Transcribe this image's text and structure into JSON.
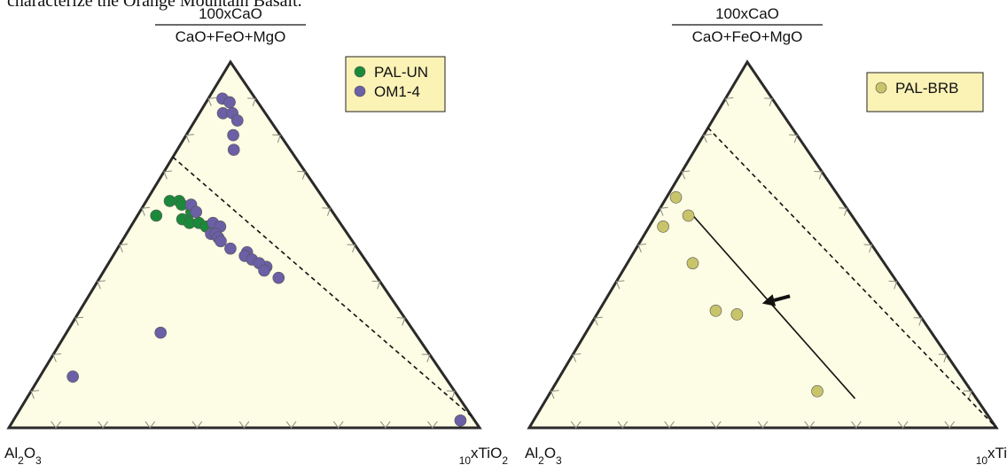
{
  "caption_fragment": "characterize the Orange Mountain Basalt.",
  "chart_data": [
    {
      "type": "scatter",
      "subtype": "ternary",
      "title": "",
      "apex_top_label_numerator": "100xCaO",
      "apex_top_label_denominator": "CaO+FeO+MgO",
      "apex_left_label": "Al2O3",
      "apex_right_label": "10xTiO2",
      "coordinate_order": [
        "top",
        "left",
        "right"
      ],
      "legend_position": "top-right",
      "series": [
        {
          "name": "PAL-UN",
          "color": "#1a8a3a",
          "points": [
            [
              0.62,
              0.33,
              0.05
            ],
            [
              0.62,
              0.31,
              0.07
            ],
            [
              0.61,
              0.31,
              0.08
            ],
            [
              0.59,
              0.3,
              0.11
            ],
            [
              0.58,
              0.38,
              0.04
            ],
            [
              0.57,
              0.33,
              0.1
            ],
            [
              0.56,
              0.32,
              0.12
            ],
            [
              0.56,
              0.3,
              0.14
            ],
            [
              0.55,
              0.29,
              0.16
            ]
          ]
        },
        {
          "name": "OM1-4",
          "color": "#6b5fa6",
          "points": [
            [
              0.9,
              0.07,
              0.03
            ],
            [
              0.89,
              0.06,
              0.05
            ],
            [
              0.86,
              0.09,
              0.05
            ],
            [
              0.86,
              0.07,
              0.07
            ],
            [
              0.84,
              0.07,
              0.09
            ],
            [
              0.8,
              0.1,
              0.1
            ],
            [
              0.76,
              0.12,
              0.12
            ],
            [
              0.61,
              0.29,
              0.1
            ],
            [
              0.59,
              0.29,
              0.12
            ],
            [
              0.56,
              0.27,
              0.17
            ],
            [
              0.55,
              0.26,
              0.19
            ],
            [
              0.53,
              0.29,
              0.18
            ],
            [
              0.53,
              0.28,
              0.19
            ],
            [
              0.52,
              0.28,
              0.2
            ],
            [
              0.51,
              0.28,
              0.21
            ],
            [
              0.49,
              0.27,
              0.24
            ],
            [
              0.48,
              0.24,
              0.28
            ],
            [
              0.47,
              0.25,
              0.28
            ],
            [
              0.46,
              0.24,
              0.3
            ],
            [
              0.44,
              0.22,
              0.34
            ],
            [
              0.45,
              0.23,
              0.32
            ],
            [
              0.43,
              0.23,
              0.34
            ],
            [
              0.41,
              0.21,
              0.38
            ],
            [
              0.26,
              0.54,
              0.2
            ],
            [
              0.14,
              0.79,
              0.07
            ],
            [
              0.02,
              0.03,
              0.95
            ]
          ]
        }
      ],
      "dashed_line": [
        [
          0.74,
          0.26,
          0.0
        ],
        [
          0.03,
          0.0,
          0.97
        ]
      ],
      "tick_divisions": 10
    },
    {
      "type": "scatter",
      "subtype": "ternary",
      "title": "",
      "apex_top_label_numerator": "100xCaO",
      "apex_top_label_denominator": "CaO+FeO+MgO",
      "apex_left_label": "Al2O3",
      "apex_right_label": "10xTiO2",
      "coordinate_order": [
        "top",
        "left",
        "right"
      ],
      "legend_position": "top-right",
      "series": [
        {
          "name": "PAL-BRB",
          "color": "#c8c46a",
          "points": [
            [
              0.63,
              0.35,
              0.02
            ],
            [
              0.58,
              0.35,
              0.07
            ],
            [
              0.55,
              0.42,
              0.03
            ],
            [
              0.45,
              0.41,
              0.14
            ],
            [
              0.32,
              0.43,
              0.25
            ],
            [
              0.31,
              0.39,
              0.3
            ],
            [
              0.1,
              0.33,
              0.57
            ]
          ]
        }
      ],
      "dashed_line": [
        [
          0.82,
          0.18,
          0.0
        ],
        [
          0.0,
          0.0,
          1.0
        ]
      ],
      "solid_line": [
        [
          0.58,
          0.34,
          0.08
        ],
        [
          0.08,
          0.26,
          0.66
        ]
      ],
      "arrow": {
        "from": [
          0.36,
          0.25,
          0.39
        ],
        "to": [
          0.34,
          0.32,
          0.34
        ]
      },
      "tick_divisions": 10
    }
  ]
}
